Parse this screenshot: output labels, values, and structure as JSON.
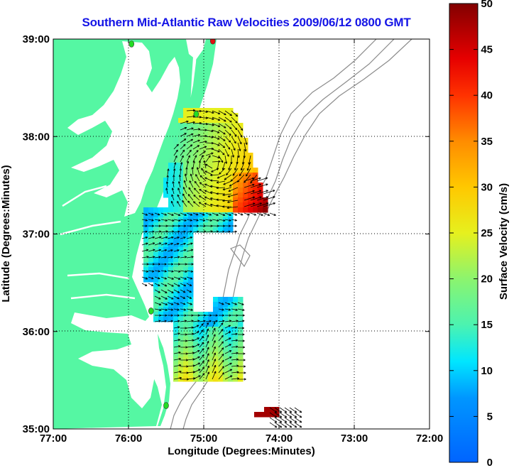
{
  "title": "Southern Mid-Atlantic Raw Velocities 2009/06/12 0800 GMT",
  "x_axis": {
    "label": "Longitude (Degrees:Minutes)",
    "ticks": [
      "77:00",
      "76:00",
      "75:00",
      "74:00",
      "73:00",
      "72:00"
    ]
  },
  "y_axis": {
    "label": "Latitude (Degrees:Minutes)",
    "ticks": [
      "39:00",
      "38:00",
      "37:00",
      "36:00",
      "35:00"
    ]
  },
  "colorbar": {
    "label": "Surface Velocity (cm/s)",
    "ticks": [
      "0",
      "5",
      "10",
      "15",
      "20",
      "25",
      "30",
      "35",
      "40",
      "45",
      "50"
    ],
    "min": 0,
    "max": 50
  },
  "colors": {
    "land": "#55f7a3",
    "title": "#1414e6",
    "bathymetry": "#8c8c8c",
    "station": "#22dd22"
  },
  "stations": [
    {
      "name": "",
      "lon": -74.88,
      "lat": 38.98,
      "color": "#e01010"
    },
    {
      "name": "",
      "lon": -75.96,
      "lat": 38.95,
      "color": "#22dd22"
    },
    {
      "name": "",
      "lon": -75.1,
      "lat": 38.23,
      "color": "#22dd22"
    },
    {
      "name": "",
      "lon": -75.7,
      "lat": 36.21,
      "color": "#22dd22"
    },
    {
      "name": "",
      "lon": -75.5,
      "lat": 35.24,
      "color": "#22dd22"
    }
  ]
}
